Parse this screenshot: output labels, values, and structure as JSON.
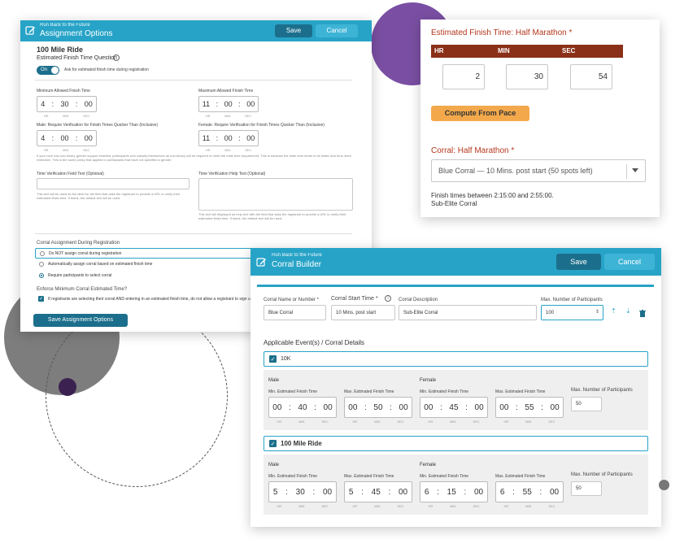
{
  "assignment": {
    "breadcrumb": "Run Back to the Future",
    "title": "Assignment Options",
    "save_label": "Save",
    "cancel_label": "Cancel",
    "event_name": "100 Mile Ride",
    "finish_question_label": "Estimated Finish Time Question",
    "toggle_state": "On",
    "toggle_text": "Ask for estimated finish time during registration",
    "min_allowed_label": "Minimum Allowed Finish Time",
    "min_allowed": {
      "hr": "4",
      "min": "30",
      "sec": "00"
    },
    "max_allowed_label": "Maximum Allowed Finish Time",
    "max_allowed": {
      "hr": "11",
      "min": "00",
      "sec": "00"
    },
    "male_verify_label": "Male: Require Verification for Finish Times Quicker Than (Inclusive)",
    "male_verify": {
      "hr": "4",
      "min": "00",
      "sec": "00"
    },
    "female_verify_label": "Female: Require Verification for Finish Times Quicker Than (Inclusive)",
    "female_verify": {
      "hr": "11",
      "min": "00",
      "sec": "00"
    },
    "units": {
      "hr": "HR",
      "min": "MIN",
      "sec": "SEC"
    },
    "nonbinary_hint": "If your race has non-binary gender support enabled, participants who classify themselves as non-binary will be required to meet the male time requirement. This is because the male time tends to be faster and thus more restrictive. This is the same policy that applies to participants that have not specified a gender.",
    "time_verif_field_label": "Time Verification Field Text (Optional)",
    "time_verif_field_hint": "This text will be used as the label for the field that asks the registrant to provide a URL to verify their estimated finish time. If blank, the default text will be used.",
    "time_verif_help_label": "Time Verification Help Text (Optional)",
    "time_verif_help_hint": "This text will displayed as help text with the field that asks the registrant to provide a URL to verify their estimated finish time. If blank, the default text will be used.",
    "corral_assign_label": "Corral Assignment During Registration",
    "radio_options": [
      "Do NOT assign corral during registration",
      "Automatically assign corral based on estimated finish time",
      "Require participants to select corral"
    ],
    "enforce_label": "Enforce Minimum Corral Estimated Time?",
    "enforce_text": "If registrants are selecting their corral AND entering in an estimated finish time, do not allow a registrant to sign up for",
    "save_assignment_label": "Save Assignment Options"
  },
  "estimate": {
    "title": "Estimated Finish Time: Half Marathon *",
    "headers": [
      "HR",
      "MIN",
      "SEC"
    ],
    "values": [
      "2",
      "30",
      "54"
    ],
    "compute_label": "Compute From Pace",
    "corral_label": "Corral: Half Marathon *",
    "corral_select": "Blue Corral — 10 Mins. post start   (50 spots left)",
    "finish_range": "Finish times between 2:15:00 and 2:55:00.",
    "corral_name": "Sub-Elite Corral"
  },
  "builder": {
    "breadcrumb": "Run Back to the Future",
    "title": "Corral Builder",
    "save_label": "Save",
    "cancel_label": "Cancel",
    "name_label": "Corral Name or Number *",
    "name_value": "Blue Corral",
    "start_label": "Corral Start Time *",
    "start_value": "10 Mins. post start",
    "desc_label": "Corral Description",
    "desc_value": "Sub-Elite Corral",
    "max_label": "Max. Number of Participants",
    "max_value": "100",
    "events_label": "Applicable Event(s) / Corral Details",
    "male_label": "Male",
    "female_label": "Female",
    "min_est_label": "Min. Estimated Finish Time",
    "max_est_label": "Max. Estimated Finish Time",
    "max_part_label": "Max. Number of Participants",
    "units": {
      "hr": "HR",
      "min": "MIN",
      "sec": "SEC"
    },
    "events": [
      {
        "name": "10K",
        "male_min": [
          "00",
          "40",
          "00"
        ],
        "male_max": [
          "00",
          "50",
          "00"
        ],
        "female_min": [
          "00",
          "45",
          "00"
        ],
        "female_max": [
          "00",
          "55",
          "00"
        ],
        "max_participants": "50"
      },
      {
        "name": "100 Mile Ride",
        "male_min": [
          "5",
          "30",
          "00"
        ],
        "male_max": [
          "5",
          "45",
          "00"
        ],
        "female_min": [
          "6",
          "15",
          "00"
        ],
        "female_max": [
          "6",
          "55",
          "00"
        ],
        "max_participants": "50"
      }
    ]
  },
  "colors": {
    "header_teal": "#27a3c7",
    "save_dark": "#1c6f8c",
    "estimate_red": "#b5361c",
    "estimate_header_bg": "#8b3018",
    "compute_orange": "#f3a94b",
    "purple": "#7a4fa3"
  }
}
